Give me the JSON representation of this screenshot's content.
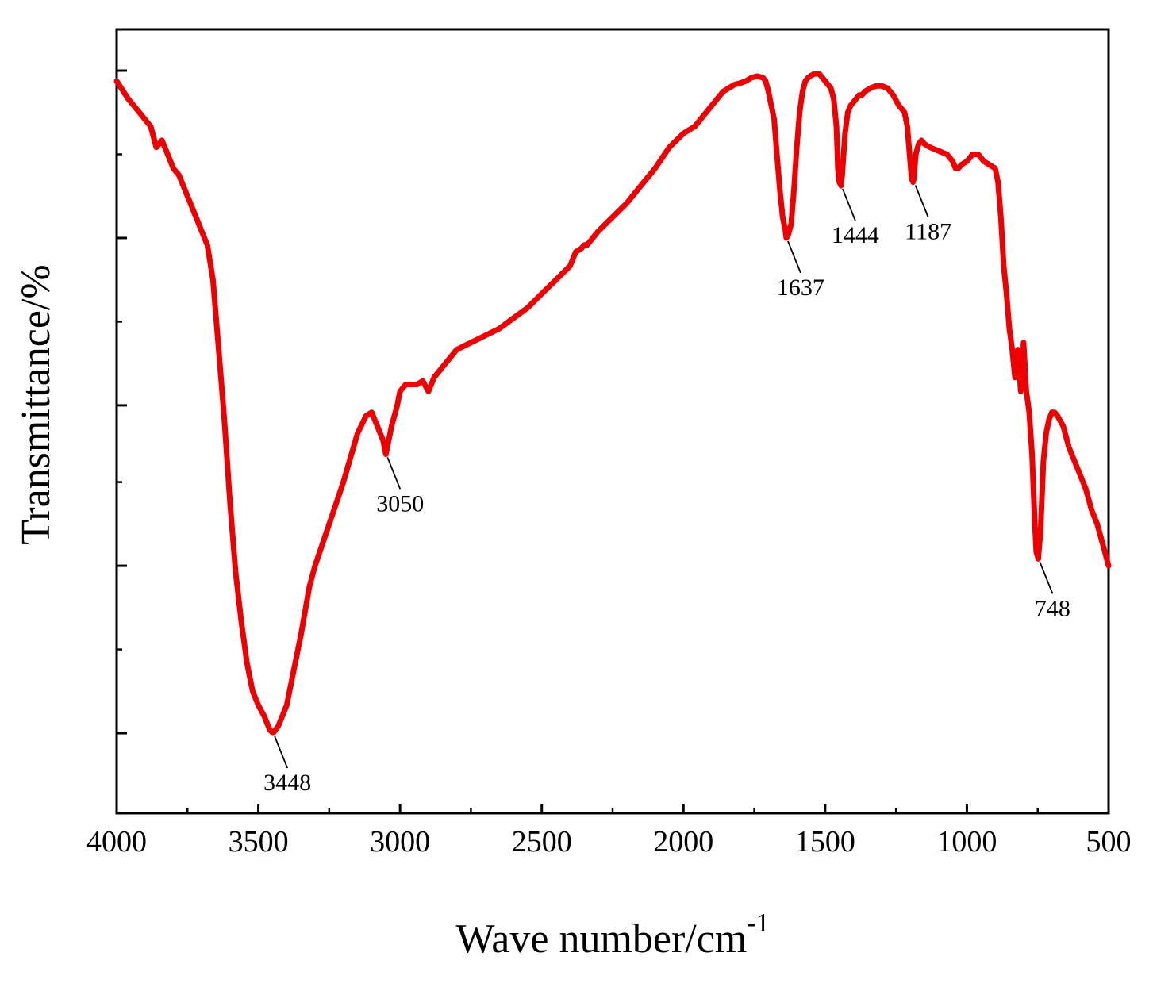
{
  "chart_data": {
    "type": "line",
    "title": "",
    "xlabel": "Wave number/cm",
    "xlabel_superscript": "-1",
    "ylabel": "Transmittance/%",
    "xlim": [
      4000,
      500
    ],
    "ylim": [
      0,
      100
    ],
    "x_reversed": true,
    "grid": false,
    "legend": "none",
    "series_color": "#ee0000",
    "x_ticks": [
      4000,
      3500,
      3000,
      2500,
      2000,
      1500,
      1000,
      500
    ],
    "x_tick_labels": [
      "4000",
      "3500",
      "3000",
      "2500",
      "2000",
      "1500",
      "1000",
      "500"
    ],
    "y_major_ticks": [
      5,
      29,
      52,
      76,
      100
    ],
    "y_minor_ticks": [
      17,
      41,
      64,
      88
    ],
    "series": [
      {
        "x": [
          4000,
          3960,
          3920,
          3880,
          3860,
          3840,
          3820,
          3800,
          3780,
          3760,
          3740,
          3720,
          3700,
          3680,
          3660,
          3640,
          3620,
          3600,
          3580,
          3560,
          3540,
          3520,
          3500,
          3480,
          3460,
          3448,
          3430,
          3400,
          3380,
          3350,
          3320,
          3300,
          3250,
          3200,
          3150,
          3120,
          3100,
          3080,
          3060,
          3050,
          3030,
          3010,
          3000,
          2980,
          2960,
          2940,
          2920,
          2900,
          2880,
          2860,
          2840,
          2800,
          2750,
          2700,
          2650,
          2600,
          2550,
          2500,
          2450,
          2400,
          2380,
          2360,
          2350,
          2340,
          2320,
          2300,
          2250,
          2200,
          2150,
          2100,
          2050,
          2000,
          1960,
          1940,
          1920,
          1900,
          1880,
          1860,
          1840,
          1820,
          1800,
          1780,
          1760,
          1740,
          1720,
          1710,
          1700,
          1690,
          1680,
          1670,
          1660,
          1650,
          1640,
          1637,
          1630,
          1620,
          1610,
          1600,
          1590,
          1580,
          1570,
          1560,
          1550,
          1540,
          1530,
          1520,
          1510,
          1500,
          1490,
          1480,
          1470,
          1460,
          1455,
          1450,
          1444,
          1440,
          1435,
          1430,
          1420,
          1410,
          1400,
          1390,
          1380,
          1370,
          1360,
          1340,
          1320,
          1300,
          1280,
          1260,
          1240,
          1230,
          1220,
          1210,
          1200,
          1195,
          1190,
          1187,
          1180,
          1170,
          1160,
          1150,
          1130,
          1100,
          1070,
          1050,
          1040,
          1030,
          1020,
          1000,
          980,
          960,
          940,
          920,
          900,
          890,
          880,
          870,
          860,
          850,
          840,
          830,
          820,
          810,
          800,
          790,
          780,
          770,
          760,
          755,
          748,
          740,
          730,
          720,
          710,
          700,
          690,
          680,
          660,
          640,
          620,
          600,
          580,
          560,
          540,
          520,
          500
        ],
        "y": [
          98.5,
          96,
          94,
          92,
          89,
          90,
          88,
          86,
          85,
          83,
          81,
          79,
          77,
          75,
          70,
          60,
          50,
          38,
          28,
          21,
          15,
          11,
          9,
          7.5,
          5.5,
          5,
          6,
          9,
          13,
          19,
          26,
          29,
          35,
          41,
          48,
          50.5,
          51,
          49,
          47,
          45,
          49,
          52,
          54,
          55,
          55,
          55,
          55.5,
          54,
          56,
          57,
          58,
          60,
          61,
          62,
          63,
          64.5,
          66,
          68,
          70,
          72,
          74,
          74.5,
          75,
          75,
          76,
          77,
          79,
          81,
          83.5,
          86,
          89,
          91,
          92,
          93,
          94,
          95,
          96,
          97,
          97.5,
          98,
          98.2,
          98.5,
          99,
          99.2,
          99,
          98.5,
          97,
          95,
          93,
          88,
          83,
          79,
          77,
          76,
          76.5,
          78,
          83,
          89,
          94,
          97,
          98.5,
          99,
          99.3,
          99.5,
          99.6,
          99.5,
          99,
          98.5,
          98,
          97.5,
          96,
          92,
          86,
          84,
          83.5,
          85,
          88,
          91,
          94,
          95,
          95.5,
          96,
          96.5,
          96.5,
          97,
          97.5,
          97.8,
          97.8,
          97.5,
          96.5,
          95,
          94.5,
          94,
          92,
          87,
          84.5,
          84,
          84.5,
          88,
          89.5,
          90,
          89.5,
          89,
          88.5,
          88,
          87,
          86,
          86,
          86.5,
          87,
          88,
          88,
          87,
          86.5,
          86,
          84,
          79,
          72,
          68,
          63,
          60,
          56,
          60,
          54,
          61,
          54,
          51,
          45,
          35,
          31,
          30,
          34,
          44,
          48,
          50,
          51,
          51,
          50.5,
          49,
          46,
          44,
          42,
          40,
          37,
          35,
          32,
          29
        ]
      }
    ],
    "annotations": [
      {
        "text": "3448",
        "x": 3448,
        "y": 5
      },
      {
        "text": "3050",
        "x": 3050,
        "y": 45
      },
      {
        "text": "1637",
        "x": 1637,
        "y": 76
      },
      {
        "text": "1444",
        "x": 1444,
        "y": 83.5
      },
      {
        "text": "1187",
        "x": 1187,
        "y": 84
      },
      {
        "text": "748",
        "x": 748,
        "y": 30
      }
    ]
  }
}
